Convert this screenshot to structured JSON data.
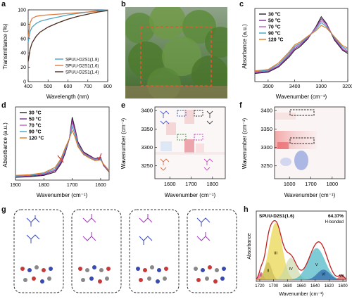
{
  "panels": {
    "a": {
      "letter": "a",
      "xlabel": "Wavelength (nm)",
      "ylabel": "Transmittance (%)",
      "xticks": [
        "400",
        "500",
        "600",
        "700",
        "800"
      ],
      "yticks": [
        "0",
        "20",
        "40",
        "60",
        "80",
        "100"
      ],
      "legend": [
        "SPUU-D2S1(1.8)",
        "SPUU-D2S1(1.6)",
        "SPUU-D2S1(1.4)"
      ],
      "colors": [
        "#4aa3c8",
        "#e07a3a",
        "#4a2a20"
      ]
    },
    "b": {
      "letter": "b"
    },
    "c": {
      "letter": "c",
      "xlabel": "Wavenumber (cm⁻¹)",
      "ylabel": "Absorbance (a.u.)",
      "xticks": [
        "3500",
        "3400",
        "3300",
        "3200"
      ],
      "legend": [
        "30 °C",
        "50 °C",
        "70 °C",
        "90 °C",
        "120 °C"
      ],
      "colors": [
        "#222222",
        "#7b2d8e",
        "#c060c0",
        "#3aa8c8",
        "#e07a20"
      ]
    },
    "d": {
      "letter": "d",
      "xlabel": "Wavenumber (cm⁻¹)",
      "ylabel": "Absorbance (a.u.)",
      "xticks": [
        "1900",
        "1800",
        "1700",
        "1600"
      ],
      "legend": [
        "30 °C",
        "50 °C",
        "70 °C",
        "90 °C",
        "120 °C"
      ],
      "colors": [
        "#222222",
        "#7b2d8e",
        "#c060c0",
        "#3aa8c8",
        "#e07a20"
      ]
    },
    "e": {
      "letter": "e",
      "xlabel": "Wavenumber (cm⁻¹)",
      "ylabel": "Wavenumber (cm⁻¹)",
      "xticks": [
        "1600",
        "1700",
        "1800"
      ],
      "yticks": [
        "3400",
        "3350",
        "3300",
        "3250"
      ]
    },
    "f": {
      "letter": "f",
      "xlabel": "Wavenumber (cm⁻¹)",
      "ylabel": "Wavenumber (cm⁻¹)",
      "xticks": [
        "1600",
        "1700",
        "1800"
      ],
      "yticks": [
        "3400",
        "3350",
        "3300",
        "3250"
      ]
    },
    "g": {
      "letter": "g"
    },
    "h": {
      "letter": "h",
      "sample": "SPUU-D2S1(1.6)",
      "percent": "64.37%",
      "percent_note": "H-bonded",
      "xlabel": "Wavenumber (cm⁻¹)",
      "ylabel": "Absorbance",
      "xticks": [
        "1720",
        "1700",
        "1680",
        "1660",
        "1640",
        "1620",
        "1600"
      ],
      "peaks": [
        "I",
        "II",
        "III",
        "IV",
        "V",
        "VI",
        "VII"
      ],
      "peak_colors": [
        "#e23a8a",
        "#8a8a8a",
        "#e6d23a",
        "#c8d8a8",
        "#3ab0c0",
        "#2a5fa8",
        "#d04040"
      ]
    }
  },
  "chart_data": [
    {
      "type": "line",
      "panel": "a",
      "xlabel": "Wavelength (nm)",
      "ylabel": "Transmittance (%)",
      "xlim": [
        400,
        800
      ],
      "ylim": [
        0,
        100
      ],
      "x": [
        400,
        410,
        420,
        440,
        460,
        500,
        550,
        600,
        650,
        700,
        750,
        800
      ],
      "series": [
        {
          "name": "SPUU-D2S1(1.8)",
          "values": [
            55,
            70,
            76,
            81,
            84,
            87,
            90,
            93,
            95,
            97,
            99,
            100
          ]
        },
        {
          "name": "SPUU-D2S1(1.6)",
          "values": [
            62,
            82,
            88,
            91,
            92,
            93,
            94,
            95,
            96,
            97,
            98,
            99
          ]
        },
        {
          "name": "SPUU-D2S1(1.4)",
          "values": [
            28,
            45,
            54,
            63,
            69,
            76,
            82,
            87,
            91,
            94,
            97,
            99
          ]
        }
      ]
    },
    {
      "type": "line",
      "panel": "c",
      "xlabel": "Wavenumber (cm⁻¹)",
      "ylabel": "Absorbance (a.u.)",
      "xlim": [
        3550,
        3200
      ],
      "x": [
        3550,
        3500,
        3460,
        3420,
        3400,
        3380,
        3350,
        3320,
        3300,
        3280,
        3250,
        3220,
        3200
      ],
      "series": [
        {
          "name": "30 °C",
          "values": [
            0.1,
            0.12,
            0.2,
            0.35,
            0.45,
            0.5,
            0.62,
            0.8,
            0.95,
            0.85,
            0.6,
            0.45,
            0.4
          ]
        },
        {
          "name": "50 °C",
          "values": [
            0.11,
            0.13,
            0.21,
            0.37,
            0.47,
            0.52,
            0.63,
            0.79,
            0.92,
            0.84,
            0.62,
            0.46,
            0.42
          ]
        },
        {
          "name": "70 °C",
          "values": [
            0.12,
            0.14,
            0.22,
            0.39,
            0.49,
            0.54,
            0.64,
            0.78,
            0.89,
            0.82,
            0.63,
            0.48,
            0.44
          ]
        },
        {
          "name": "90 °C",
          "values": [
            0.13,
            0.15,
            0.24,
            0.41,
            0.51,
            0.55,
            0.65,
            0.76,
            0.86,
            0.8,
            0.64,
            0.5,
            0.46
          ]
        },
        {
          "name": "120 °C",
          "values": [
            0.14,
            0.16,
            0.26,
            0.43,
            0.53,
            0.57,
            0.66,
            0.74,
            0.82,
            0.78,
            0.65,
            0.52,
            0.48
          ]
        }
      ]
    },
    {
      "type": "line",
      "panel": "d",
      "xlabel": "Wavenumber (cm⁻¹)",
      "ylabel": "Absorbance (a.u.)",
      "xlim": [
        1900,
        1570
      ],
      "x": [
        1900,
        1850,
        1800,
        1760,
        1740,
        1725,
        1710,
        1700,
        1690,
        1680,
        1660,
        1640,
        1620,
        1600,
        1590,
        1570
      ],
      "series": [
        {
          "name": "30 °C",
          "values": [
            0.02,
            0.03,
            0.05,
            0.1,
            0.22,
            0.38,
            0.6,
            0.92,
            0.75,
            0.55,
            0.4,
            0.35,
            0.3,
            0.32,
            0.2,
            0.1
          ]
        },
        {
          "name": "50 °C",
          "values": [
            0.03,
            0.04,
            0.06,
            0.12,
            0.24,
            0.4,
            0.6,
            0.88,
            0.72,
            0.53,
            0.39,
            0.34,
            0.3,
            0.31,
            0.21,
            0.11
          ]
        },
        {
          "name": "70 °C",
          "values": [
            0.03,
            0.05,
            0.07,
            0.13,
            0.26,
            0.42,
            0.6,
            0.84,
            0.7,
            0.52,
            0.38,
            0.33,
            0.29,
            0.3,
            0.21,
            0.11
          ]
        },
        {
          "name": "90 °C",
          "values": [
            0.04,
            0.05,
            0.08,
            0.15,
            0.28,
            0.44,
            0.6,
            0.78,
            0.66,
            0.5,
            0.37,
            0.32,
            0.28,
            0.29,
            0.22,
            0.12
          ]
        },
        {
          "name": "120 °C",
          "values": [
            0.05,
            0.06,
            0.09,
            0.17,
            0.3,
            0.46,
            0.6,
            0.72,
            0.62,
            0.48,
            0.36,
            0.31,
            0.27,
            0.28,
            0.22,
            0.12
          ]
        }
      ]
    },
    {
      "type": "area",
      "panel": "h",
      "xlabel": "Wavenumber (cm⁻¹)",
      "ylabel": "Absorbance",
      "xlim": [
        1725,
        1595
      ],
      "peaks": [
        {
          "name": "I",
          "center": 1718,
          "height": 0.12,
          "width": 3
        },
        {
          "name": "II",
          "center": 1708,
          "height": 0.28,
          "width": 5
        },
        {
          "name": "III",
          "center": 1697,
          "height": 0.9,
          "width": 9
        },
        {
          "name": "IV",
          "center": 1675,
          "height": 0.35,
          "width": 8
        },
        {
          "name": "V",
          "center": 1638,
          "height": 0.5,
          "width": 12
        },
        {
          "name": "VI",
          "center": 1628,
          "height": 0.16,
          "width": 9
        },
        {
          "name": "VII",
          "center": 1602,
          "height": 0.07,
          "width": 4
        }
      ]
    }
  ]
}
